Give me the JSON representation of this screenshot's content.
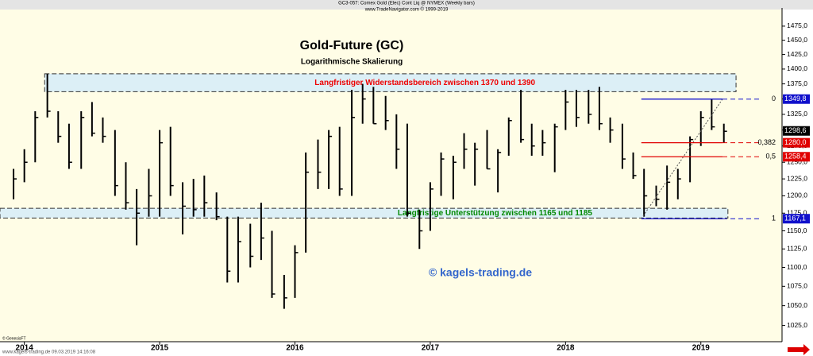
{
  "chart_data": {
    "type": "hlc",
    "header": "GC3-057: Comex Gold (Elec) Cont Liq @ NYMEX  (Weekly bars)",
    "header_sub": "www.TradeNavigator.com © 1999-2019",
    "title": "Gold-Future (GC)",
    "subtitle": "Logarithmische Skalierung",
    "watermark": "© kagels-trading.de",
    "footer_left": "© GenesisFT",
    "footer": "www.kagels-trading.de   09.03.2019 14:16:08",
    "log_scale": true,
    "color": "#000000",
    "xlim": [
      2013.82,
      2019.6
    ],
    "xticks": [
      2014,
      2015,
      2016,
      2017,
      2018,
      2019
    ],
    "ylim": [
      1005,
      1508
    ],
    "yticks": [
      {
        "value": 1025,
        "label": "1025,0"
      },
      {
        "value": 1050,
        "label": "1050,0"
      },
      {
        "value": 1075,
        "label": "1075,0"
      },
      {
        "value": 1100,
        "label": "1100,0"
      },
      {
        "value": 1125,
        "label": "1125,0"
      },
      {
        "value": 1150,
        "label": "1150,0"
      },
      {
        "value": 1175,
        "label": "1175,0"
      },
      {
        "value": 1200,
        "label": "1200,0"
      },
      {
        "value": 1225,
        "label": "1225,0"
      },
      {
        "value": 1250,
        "label": "1250,0"
      },
      {
        "value": 1275,
        "label": "1275,0"
      },
      {
        "value": 1300,
        "label": "1300,0"
      },
      {
        "value": 1325,
        "label": "1325,0"
      },
      {
        "value": 1350,
        "label": "1350,0"
      },
      {
        "value": 1375,
        "label": "1375,0"
      },
      {
        "value": 1400,
        "label": "1400,0"
      },
      {
        "value": 1425,
        "label": "1425,0"
      },
      {
        "value": 1450,
        "label": "1450,0"
      },
      {
        "value": 1475,
        "label": "1475,0"
      }
    ],
    "x": [
      2013.92,
      2014.0,
      2014.08,
      2014.17,
      2014.25,
      2014.33,
      2014.42,
      2014.5,
      2014.58,
      2014.67,
      2014.75,
      2014.83,
      2014.92,
      2015.0,
      2015.08,
      2015.17,
      2015.25,
      2015.33,
      2015.42,
      2015.5,
      2015.58,
      2015.67,
      2015.75,
      2015.83,
      2015.92,
      2016.0,
      2016.08,
      2016.17,
      2016.25,
      2016.33,
      2016.42,
      2016.5,
      2016.58,
      2016.67,
      2016.75,
      2016.83,
      2016.92,
      2017.0,
      2017.08,
      2017.17,
      2017.25,
      2017.33,
      2017.42,
      2017.5,
      2017.58,
      2017.67,
      2017.75,
      2017.83,
      2017.92,
      2018.0,
      2018.08,
      2018.17,
      2018.25,
      2018.33,
      2018.42,
      2018.5,
      2018.58,
      2018.67,
      2018.75,
      2018.83,
      2018.92,
      2019.0,
      2019.08,
      2019.17
    ],
    "high": [
      1240,
      1270,
      1330,
      1392,
      1330,
      1310,
      1330,
      1345,
      1320,
      1300,
      1250,
      1210,
      1240,
      1300,
      1305,
      1220,
      1225,
      1230,
      1205,
      1170,
      1170,
      1160,
      1190,
      1150,
      1090,
      1130,
      1265,
      1285,
      1300,
      1305,
      1365,
      1375,
      1370,
      1355,
      1325,
      1310,
      1180,
      1220,
      1265,
      1260,
      1295,
      1280,
      1300,
      1270,
      1320,
      1365,
      1310,
      1300,
      1310,
      1365,
      1365,
      1365,
      1370,
      1320,
      1310,
      1265,
      1240,
      1215,
      1245,
      1240,
      1290,
      1330,
      1350,
      1310
    ],
    "low": [
      1195,
      1220,
      1250,
      1320,
      1280,
      1240,
      1240,
      1290,
      1280,
      1200,
      1180,
      1130,
      1170,
      1170,
      1200,
      1145,
      1170,
      1170,
      1165,
      1080,
      1080,
      1100,
      1110,
      1060,
      1046,
      1060,
      1120,
      1210,
      1210,
      1200,
      1200,
      1310,
      1310,
      1300,
      1240,
      1170,
      1125,
      1150,
      1200,
      1195,
      1240,
      1215,
      1240,
      1205,
      1260,
      1280,
      1260,
      1260,
      1235,
      1300,
      1305,
      1310,
      1300,
      1280,
      1240,
      1225,
      1170,
      1185,
      1180,
      1195,
      1220,
      1275,
      1300,
      1280
    ],
    "close": [
      1225,
      1250,
      1320,
      1330,
      1290,
      1250,
      1320,
      1295,
      1290,
      1215,
      1190,
      1175,
      1200,
      1280,
      1215,
      1185,
      1180,
      1190,
      1170,
      1095,
      1135,
      1115,
      1140,
      1065,
      1060,
      1120,
      1235,
      1235,
      1290,
      1210,
      1320,
      1350,
      1310,
      1315,
      1270,
      1175,
      1150,
      1210,
      1255,
      1250,
      1270,
      1270,
      1240,
      1265,
      1315,
      1285,
      1275,
      1280,
      1305,
      1345,
      1320,
      1325,
      1310,
      1300,
      1255,
      1230,
      1200,
      1195,
      1220,
      1225,
      1285,
      1320,
      1305,
      1298
    ],
    "zones": [
      {
        "label": "Langfristiger Widerstandsbereich zwischen 1370 und 1390",
        "low": 1362,
        "high": 1392,
        "x0": 2014.15,
        "x1": 2019.26,
        "color": "#ee0000"
      },
      {
        "label": "Langfristige Unterstützung zwischen 1165 und 1185",
        "low": 1168,
        "high": 1182,
        "x0": 2013.82,
        "x1": 2019.2,
        "color": "#008800"
      }
    ],
    "fib_x": [
      2018.56,
      2019.16
    ],
    "fib_levels": [
      {
        "ratio": "0",
        "value": 1349.8,
        "label": "1349,8",
        "color": "#1010cc"
      },
      {
        "ratio": "0,382",
        "value": 1280.0,
        "label": "1280,0",
        "color": "#e00000"
      },
      {
        "ratio": "0,5",
        "value": 1258.4,
        "label": "1258,4",
        "color": "#e00000"
      },
      {
        "ratio": "1",
        "value": 1167.1,
        "label": "1167,1",
        "color": "#1010cc"
      }
    ],
    "last_price": {
      "value": 1298.6,
      "label": "1298,6"
    }
  }
}
